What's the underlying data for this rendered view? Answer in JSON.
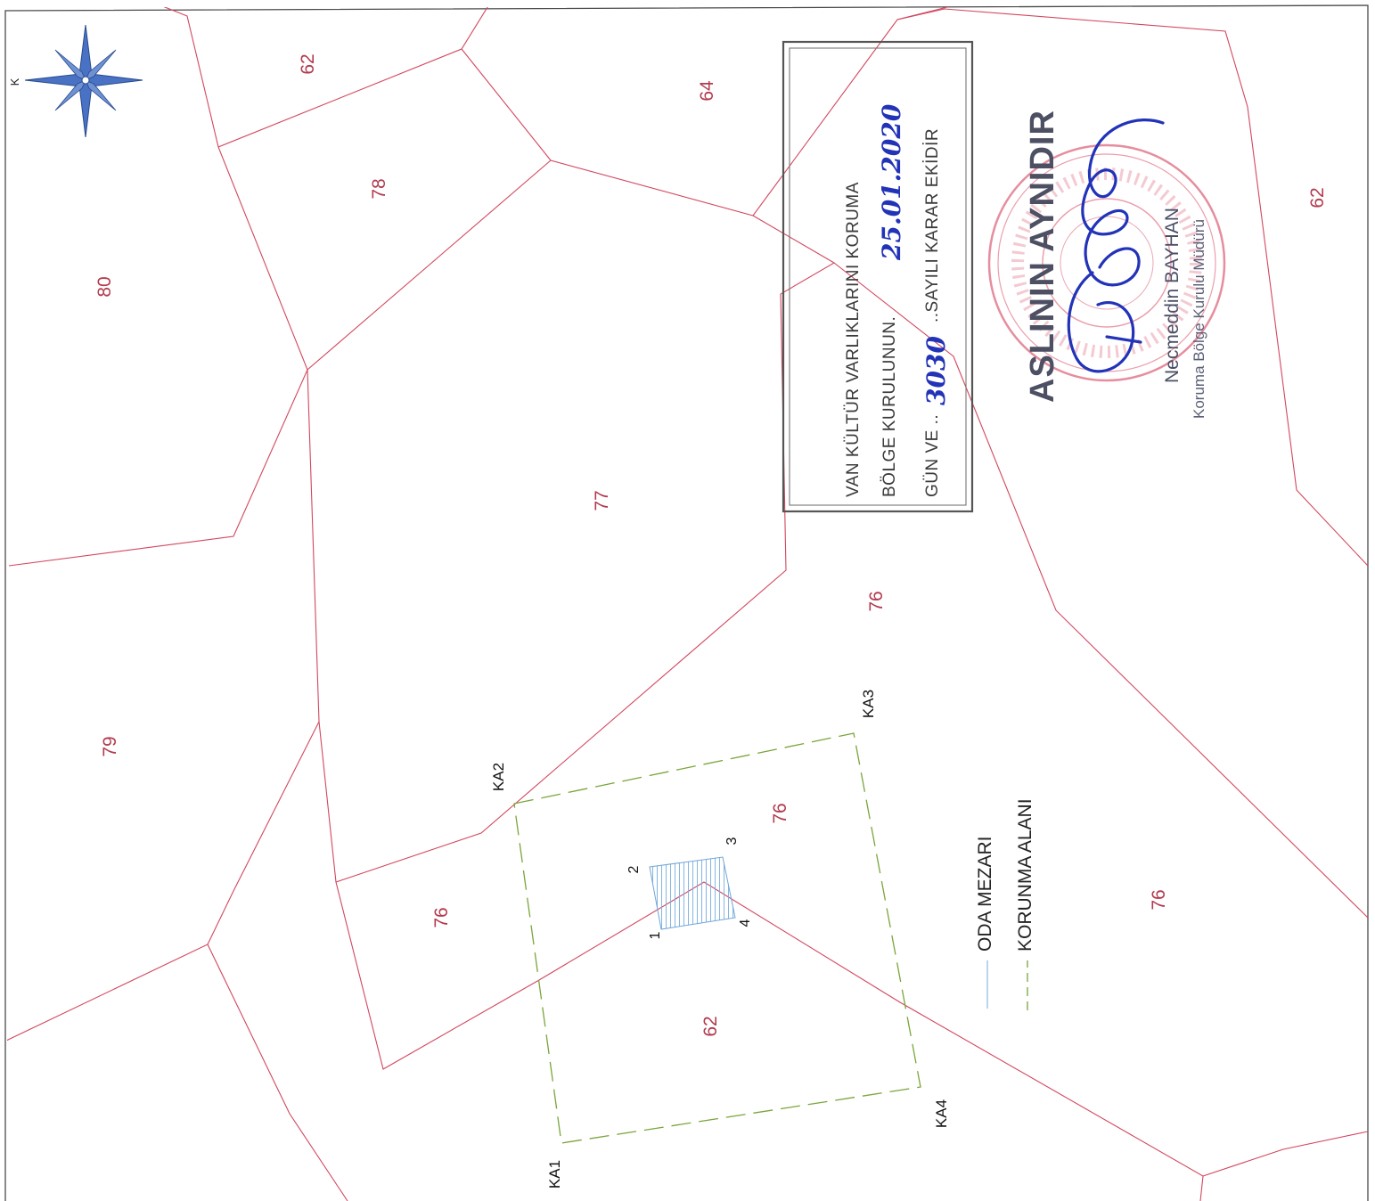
{
  "map": {
    "north_label": "K",
    "parcels": [
      "62",
      "80",
      "78",
      "64",
      "77",
      "79",
      "76",
      "76",
      "76",
      "62",
      "76",
      "62"
    ],
    "tomb_points": [
      "1",
      "2",
      "3",
      "4"
    ],
    "zone_corners": [
      "KA1",
      "KA2",
      "KA3",
      "KA4"
    ],
    "legend": {
      "tomb": "ODA MEZARI",
      "zone": "KORUNMA ALANI"
    },
    "colors": {
      "parcel_lines": "#d2475f",
      "zone_line": "#7aa53a",
      "tomb_line": "#6fa5d8",
      "stamp_ink": "#2233b8",
      "seal_ink": "#d9506a"
    }
  },
  "stamp": {
    "line1": "VAN  KÜLTÜR  VARLIKLARINI  KORUMA",
    "line2_prefix": "BÖLGE  KURULUNUN.",
    "date_handwritten": "25.01.2020",
    "line3_prefix": "GÜN VE ..",
    "number_handwritten": "3030",
    "line3_suffix": "..SAYILI KARAR EKİDİR"
  },
  "signature_stamp": {
    "headline": "ASLININ AYNIDIR",
    "name": "Necmeddin BAYHAN",
    "title": "Koruma Bölge Kurulu Müdürü"
  }
}
